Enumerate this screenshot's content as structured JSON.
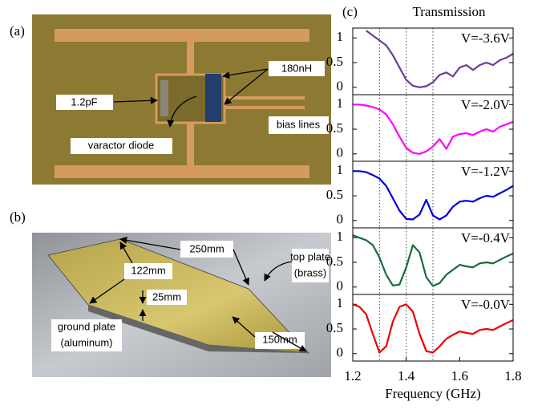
{
  "figure": {
    "panel_a": {
      "label": "(a)",
      "annotations": [
        "1.2pF",
        "180nH",
        "varactor diode",
        "bias lines"
      ]
    },
    "panel_b": {
      "label": "(b)",
      "annotations": [
        "250mm",
        "122mm",
        "25mm",
        "top plate",
        "(brass)",
        "ground plate",
        "(aluminum)",
        "150mm"
      ]
    },
    "panel_c": {
      "label": "(c)"
    }
  },
  "chart_data": [
    {
      "type": "line",
      "title": "Transmission",
      "annotation": "V=-3.6V",
      "x": [
        1.2,
        1.225,
        1.25,
        1.275,
        1.3,
        1.325,
        1.35,
        1.375,
        1.4,
        1.425,
        1.45,
        1.475,
        1.5,
        1.525,
        1.55,
        1.575,
        1.6,
        1.625,
        1.65,
        1.675,
        1.7,
        1.725,
        1.75,
        1.775,
        1.8
      ],
      "series": [
        {
          "color": "#6a3d9a",
          "values": [
            null,
            null,
            1.15,
            1.05,
            0.95,
            0.85,
            0.65,
            0.4,
            0.15,
            0.03,
            0.0,
            0.02,
            0.1,
            0.25,
            0.3,
            0.22,
            0.4,
            0.45,
            0.35,
            0.45,
            0.5,
            0.45,
            0.55,
            0.6,
            0.68
          ]
        }
      ],
      "xlim": [
        1.2,
        1.8
      ],
      "ylim": [
        -0.15,
        1.2
      ],
      "yticks": [
        0,
        0.5,
        1
      ],
      "xgrid": [
        1.3,
        1.4,
        1.5
      ]
    },
    {
      "type": "line",
      "annotation": "V=-2.0V",
      "x": [
        1.2,
        1.225,
        1.25,
        1.275,
        1.3,
        1.325,
        1.35,
        1.375,
        1.4,
        1.425,
        1.45,
        1.475,
        1.5,
        1.525,
        1.55,
        1.575,
        1.6,
        1.625,
        1.65,
        1.675,
        1.7,
        1.725,
        1.75,
        1.775,
        1.8
      ],
      "series": [
        {
          "color": "#ff00ff",
          "values": [
            1.0,
            1.0,
            0.98,
            0.95,
            0.9,
            0.8,
            0.6,
            0.35,
            0.12,
            0.02,
            0.0,
            0.05,
            0.15,
            0.3,
            0.1,
            0.35,
            0.4,
            0.42,
            0.38,
            0.45,
            0.5,
            0.45,
            0.55,
            0.6,
            0.65
          ]
        }
      ],
      "xlim": [
        1.2,
        1.8
      ],
      "ylim": [
        -0.15,
        1.2
      ],
      "yticks": [
        0,
        0.5,
        1
      ],
      "xgrid": [
        1.3,
        1.4,
        1.5
      ]
    },
    {
      "type": "line",
      "annotation": "V=-1.2V",
      "x": [
        1.2,
        1.225,
        1.25,
        1.275,
        1.3,
        1.325,
        1.35,
        1.375,
        1.4,
        1.425,
        1.45,
        1.475,
        1.5,
        1.525,
        1.55,
        1.575,
        1.6,
        1.625,
        1.65,
        1.675,
        1.7,
        1.725,
        1.75,
        1.775,
        1.8
      ],
      "series": [
        {
          "color": "#0000dd",
          "values": [
            1.0,
            1.0,
            0.98,
            0.92,
            0.85,
            0.7,
            0.45,
            0.2,
            0.03,
            0.02,
            0.12,
            0.42,
            0.1,
            0.02,
            0.1,
            0.28,
            0.38,
            0.4,
            0.38,
            0.45,
            0.5,
            0.48,
            0.55,
            0.62,
            0.7
          ]
        }
      ],
      "xlim": [
        1.2,
        1.8
      ],
      "ylim": [
        -0.15,
        1.2
      ],
      "yticks": [
        0,
        0.5,
        1
      ],
      "xgrid": [
        1.3,
        1.4,
        1.5
      ]
    },
    {
      "type": "line",
      "annotation": "V=-0.4V",
      "x": [
        1.2,
        1.225,
        1.25,
        1.275,
        1.3,
        1.325,
        1.35,
        1.375,
        1.4,
        1.425,
        1.45,
        1.475,
        1.5,
        1.525,
        1.55,
        1.575,
        1.6,
        1.625,
        1.65,
        1.675,
        1.7,
        1.725,
        1.75,
        1.775,
        1.8
      ],
      "series": [
        {
          "color": "#1a6b3a",
          "values": [
            1.05,
            1.0,
            0.95,
            0.85,
            0.6,
            0.25,
            0.03,
            0.05,
            0.4,
            0.85,
            0.7,
            0.2,
            0.02,
            0.08,
            0.25,
            0.35,
            0.45,
            0.42,
            0.4,
            0.48,
            0.5,
            0.48,
            0.55,
            0.62,
            0.68
          ]
        }
      ],
      "xlim": [
        1.2,
        1.8
      ],
      "ylim": [
        -0.15,
        1.2
      ],
      "yticks": [
        0,
        0.5,
        1
      ],
      "xgrid": [
        1.3,
        1.4,
        1.5
      ]
    },
    {
      "type": "line",
      "annotation": "V=-0.0V",
      "xlabel": "Frequency (GHz)",
      "x": [
        1.2,
        1.225,
        1.25,
        1.275,
        1.3,
        1.325,
        1.35,
        1.375,
        1.4,
        1.425,
        1.45,
        1.475,
        1.5,
        1.525,
        1.55,
        1.575,
        1.6,
        1.625,
        1.65,
        1.675,
        1.7,
        1.725,
        1.75,
        1.775,
        1.8
      ],
      "series": [
        {
          "color": "#ee0000",
          "values": [
            1.0,
            0.95,
            0.8,
            0.4,
            0.02,
            0.15,
            0.65,
            0.95,
            1.0,
            0.85,
            0.4,
            0.05,
            0.02,
            0.15,
            0.3,
            0.38,
            0.45,
            0.42,
            0.4,
            0.48,
            0.5,
            0.48,
            0.55,
            0.62,
            0.68
          ]
        }
      ],
      "xlim": [
        1.2,
        1.8
      ],
      "ylim": [
        -0.15,
        1.2
      ],
      "yticks": [
        0,
        0.5,
        1
      ],
      "xticks": [
        1.2,
        1.4,
        1.6,
        1.8
      ],
      "xgrid": [
        1.3,
        1.4,
        1.5
      ]
    }
  ]
}
